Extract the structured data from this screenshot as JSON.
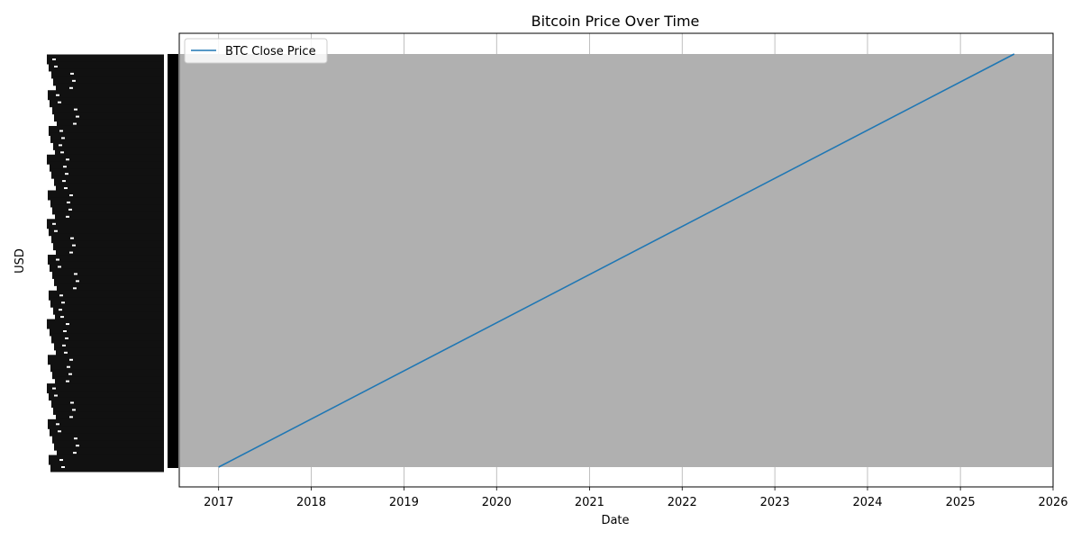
{
  "chart_data": {
    "type": "line",
    "title": "Bitcoin Price Over Time",
    "xlabel": "Date",
    "ylabel": "USD",
    "x_ticks": [
      "2017",
      "2018",
      "2019",
      "2020",
      "2021",
      "2022",
      "2023",
      "2024",
      "2025",
      "2026"
    ],
    "xlim": [
      "2016-07-30",
      "2026-01-01"
    ],
    "grid": true,
    "legend_position": "top-left",
    "y_axis_note": "categorical string values; tick labels overlap into an unreadable black block",
    "series": [
      {
        "name": "BTC Close Price",
        "color": "#1f77b4",
        "x": [
          "2017-01-01",
          "2025-08-01"
        ],
        "y": [
          0,
          1
        ]
      }
    ],
    "category_band_color": "#b0b0b0"
  }
}
